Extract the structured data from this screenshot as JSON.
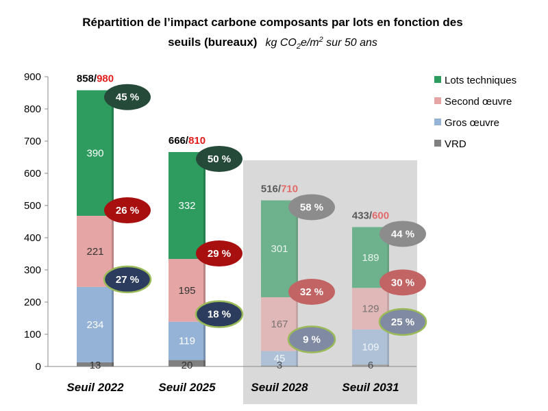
{
  "chart_data": {
    "type": "bar",
    "stacked": true,
    "title_line1": "Répartition de l’impact carbone composants par lots en fonction des",
    "title_line2": "seuils (bureaux)",
    "units_pre": "kg CO",
    "units_sub": "2",
    "units_mid": "e/m",
    "units_sup": "2",
    "units_post": " sur 50 ans",
    "categories": [
      "Seuil 2022",
      "Seuil 2025",
      "Seuil 2028",
      "Seuil 2031"
    ],
    "ylim": [
      0,
      900
    ],
    "yticks": [
      0,
      100,
      200,
      300,
      400,
      500,
      600,
      700,
      800,
      900
    ],
    "grid": false,
    "legend_position": "right",
    "series": [
      {
        "name": "VRD",
        "color": "#808080",
        "values": [
          13,
          20,
          3,
          6
        ]
      },
      {
        "name": "Gros œuvre",
        "color": "#95b3d7",
        "values": [
          234,
          119,
          45,
          109
        ]
      },
      {
        "name": "Second œuvre",
        "color": "#e6a5a5",
        "values": [
          221,
          195,
          167,
          129
        ]
      },
      {
        "name": "Lots techniques",
        "color": "#2e9b5f",
        "values": [
          390,
          332,
          301,
          189
        ]
      }
    ],
    "totals_current": [
      "858",
      "666",
      "516",
      "433"
    ],
    "totals_threshold": [
      "980",
      "810",
      "710",
      "600"
    ],
    "total_separator": "/",
    "percent_labels": {
      "Lots techniques": [
        "45 %",
        "50 %",
        "58 %",
        "44 %"
      ],
      "Second œuvre": [
        "26 %",
        "29 %",
        "32 %",
        "30 %"
      ],
      "Gros œuvre": [
        "27 %",
        "18 %",
        "9 %",
        "25 %"
      ]
    },
    "percent_colors": {
      "Lots techniques": "#264a3a",
      "Second œuvre": "#a80f0f",
      "Gros œuvre": "#2c3c5e"
    },
    "future_shading_from_index": 2,
    "future_shading_color": "#d9d9d9",
    "colors": {
      "axis": "#8a8a8a",
      "threshold_text": "#e31b1b",
      "total_text": "#000000",
      "ellipse_border": "#9bbb59"
    }
  }
}
